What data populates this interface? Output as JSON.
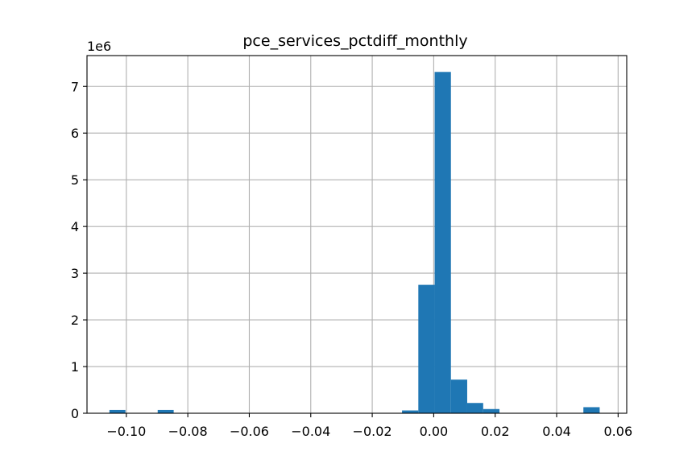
{
  "chart_data": {
    "type": "bar",
    "title": "pce_services_pctdiff_monthly",
    "xlabel": "",
    "ylabel": "",
    "y_offset_label": "1e6",
    "xlim": [
      -0.1128,
      0.0628
    ],
    "ylim": [
      0,
      7.66
    ],
    "x_ticks": [
      -0.1,
      -0.08,
      -0.06,
      -0.04,
      -0.02,
      0.0,
      0.02,
      0.04,
      0.06
    ],
    "x_tick_labels": [
      "−0.10",
      "−0.08",
      "−0.06",
      "−0.04",
      "−0.02",
      "0.00",
      "0.02",
      "0.04",
      "0.06"
    ],
    "y_ticks": [
      0,
      1,
      2,
      3,
      4,
      5,
      6,
      7
    ],
    "y_tick_labels": [
      "0",
      "1",
      "2",
      "3",
      "4",
      "5",
      "6",
      "7"
    ],
    "grid": true,
    "legend": "none",
    "bar_color": "#1f77b4",
    "bins": [
      {
        "x0": -0.1055,
        "x1": -0.1003,
        "value": 0.07
      },
      {
        "x0": -0.0898,
        "x1": -0.0846,
        "value": 0.07
      },
      {
        "x0": -0.0103,
        "x1": -0.005,
        "value": 0.06
      },
      {
        "x0": -0.005,
        "x1": 0.0003,
        "value": 2.75
      },
      {
        "x0": 0.0003,
        "x1": 0.0056,
        "value": 7.31
      },
      {
        "x0": 0.0056,
        "x1": 0.0109,
        "value": 0.72
      },
      {
        "x0": 0.0109,
        "x1": 0.0161,
        "value": 0.22
      },
      {
        "x0": 0.0161,
        "x1": 0.0214,
        "value": 0.09
      },
      {
        "x0": 0.0487,
        "x1": 0.054,
        "value": 0.13
      }
    ]
  }
}
